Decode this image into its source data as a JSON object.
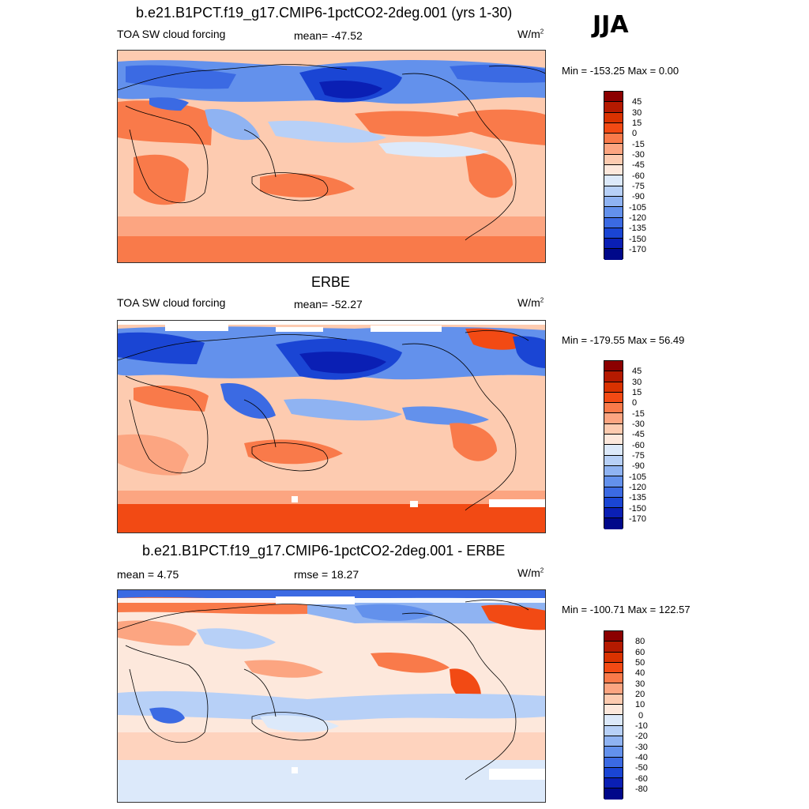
{
  "season": "JJA",
  "panels": [
    {
      "title": "b.e21.B1PCT.f19_g17.CMIP6-1pctCO2-2deg.001 (yrs 1-30)",
      "left_label": "TOA SW cloud forcing",
      "center_label": "mean= -47.52",
      "units": "W/m",
      "units_sup": "2",
      "minmax": "Min = -153.25 Max =    0.00",
      "levels": [
        "45",
        "30",
        "15",
        "0",
        "-15",
        "-30",
        "-45",
        "-60",
        "-75",
        "-90",
        "-105",
        "-120",
        "-135",
        "-150",
        "-170"
      ]
    },
    {
      "title": "ERBE",
      "left_label": "TOA SW cloud forcing",
      "center_label": "mean= -52.27",
      "units": "W/m",
      "units_sup": "2",
      "minmax": "Min = -179.55 Max =  56.49",
      "levels": [
        "45",
        "30",
        "15",
        "0",
        "-15",
        "-30",
        "-45",
        "-60",
        "-75",
        "-90",
        "-105",
        "-120",
        "-135",
        "-150",
        "-170"
      ]
    },
    {
      "title": "b.e21.B1PCT.f19_g17.CMIP6-1pctCO2-2deg.001 - ERBE",
      "left_label": "mean =   4.75",
      "center_label": "rmse =  18.27",
      "units": "W/m",
      "units_sup": "2",
      "minmax": "Min = -100.71 Max = 122.57",
      "levels": [
        "80",
        "60",
        "50",
        "40",
        "30",
        "20",
        "10",
        "0",
        "-10",
        "-20",
        "-30",
        "-40",
        "-50",
        "-60",
        "-80"
      ]
    }
  ],
  "colors": {
    "colorbar": [
      "#8b0000",
      "#b51a00",
      "#d93200",
      "#f24a14",
      "#f97a4a",
      "#fca581",
      "#fdcbb0",
      "#fde8dc",
      "#dce9fa",
      "#b7d0f7",
      "#8fb3f2",
      "#6391ec",
      "#3b6ae3",
      "#1a45d4",
      "#0a1fb4",
      "#00088a"
    ],
    "land_outline": "#000000",
    "missing": "#ffffff"
  }
}
